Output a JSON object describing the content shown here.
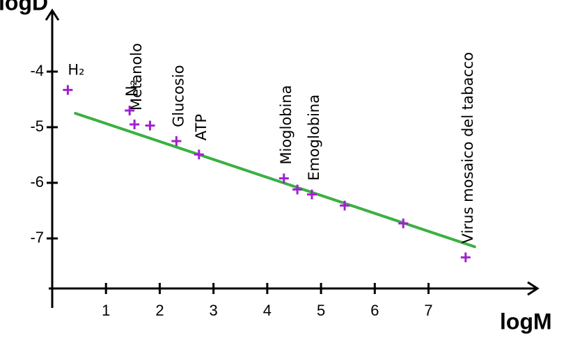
{
  "chart_data": {
    "type": "scatter",
    "x_label": "logM",
    "y_label": "logD",
    "xlim": [
      0,
      9
    ],
    "ylim": [
      -7.9,
      -2.9
    ],
    "xticks": [
      1,
      2,
      3,
      4,
      5,
      6,
      7
    ],
    "yticks": [
      -4,
      -5,
      -6,
      -7
    ],
    "series": [
      {
        "color": "#a020d0",
        "x": [
          0.29,
          1.44,
          1.53,
          1.82,
          2.31,
          2.73,
          4.31,
          4.56,
          4.83,
          5.44,
          6.53,
          7.69
        ],
        "values": [
          -4.33,
          -4.7,
          -4.95,
          -4.97,
          -5.25,
          -5.49,
          -5.92,
          -6.12,
          -6.21,
          -6.41,
          -6.73,
          -7.34
        ],
        "point_labels": [
          "H₂",
          "N₂",
          "Metanolo",
          null,
          "Glucosio",
          "ATP",
          "Mioglobina",
          null,
          "Emoglobina",
          null,
          null,
          "Virus mosaico del tabacco"
        ]
      }
    ],
    "fit": {
      "color": "#3cb043",
      "x": [
        0.43,
        7.86
      ],
      "values": [
        -4.75,
        -7.15
      ]
    }
  }
}
